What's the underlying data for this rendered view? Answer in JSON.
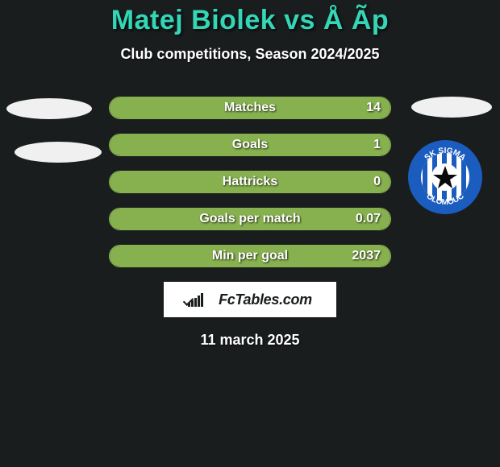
{
  "title": "Matej Biolek vs Å Ãp",
  "subtitle": "Club competitions, Season 2024/2025",
  "date": "11 march 2025",
  "brand_text": "FcTables.com",
  "stats": [
    {
      "label": "Matches",
      "value": "14",
      "right_fill_pct": 100
    },
    {
      "label": "Goals",
      "value": "1",
      "right_fill_pct": 100
    },
    {
      "label": "Hattricks",
      "value": "0",
      "right_fill_pct": 100
    },
    {
      "label": "Goals per match",
      "value": "0.07",
      "right_fill_pct": 100
    },
    {
      "label": "Min per goal",
      "value": "2037",
      "right_fill_pct": 100
    }
  ],
  "style": {
    "accent_teal": "#33d6b6",
    "bar_green": "#87b14e",
    "background": "#1a1d1e",
    "text_white": "#ffffff"
  },
  "club_badge": {
    "name": "SK Sigma Olomouc",
    "ring_color": "#1b5dbf",
    "ring_text_color": "#ffffff",
    "inner_bg": "#ffffff",
    "stripe_color": "#1b5dbf",
    "star_color": "#0a0a0a",
    "top_text": "SK SIGMA",
    "bottom_text": "OLOMOUC"
  },
  "fctables_icon_bars": [
    5,
    8,
    11,
    14,
    17
  ]
}
